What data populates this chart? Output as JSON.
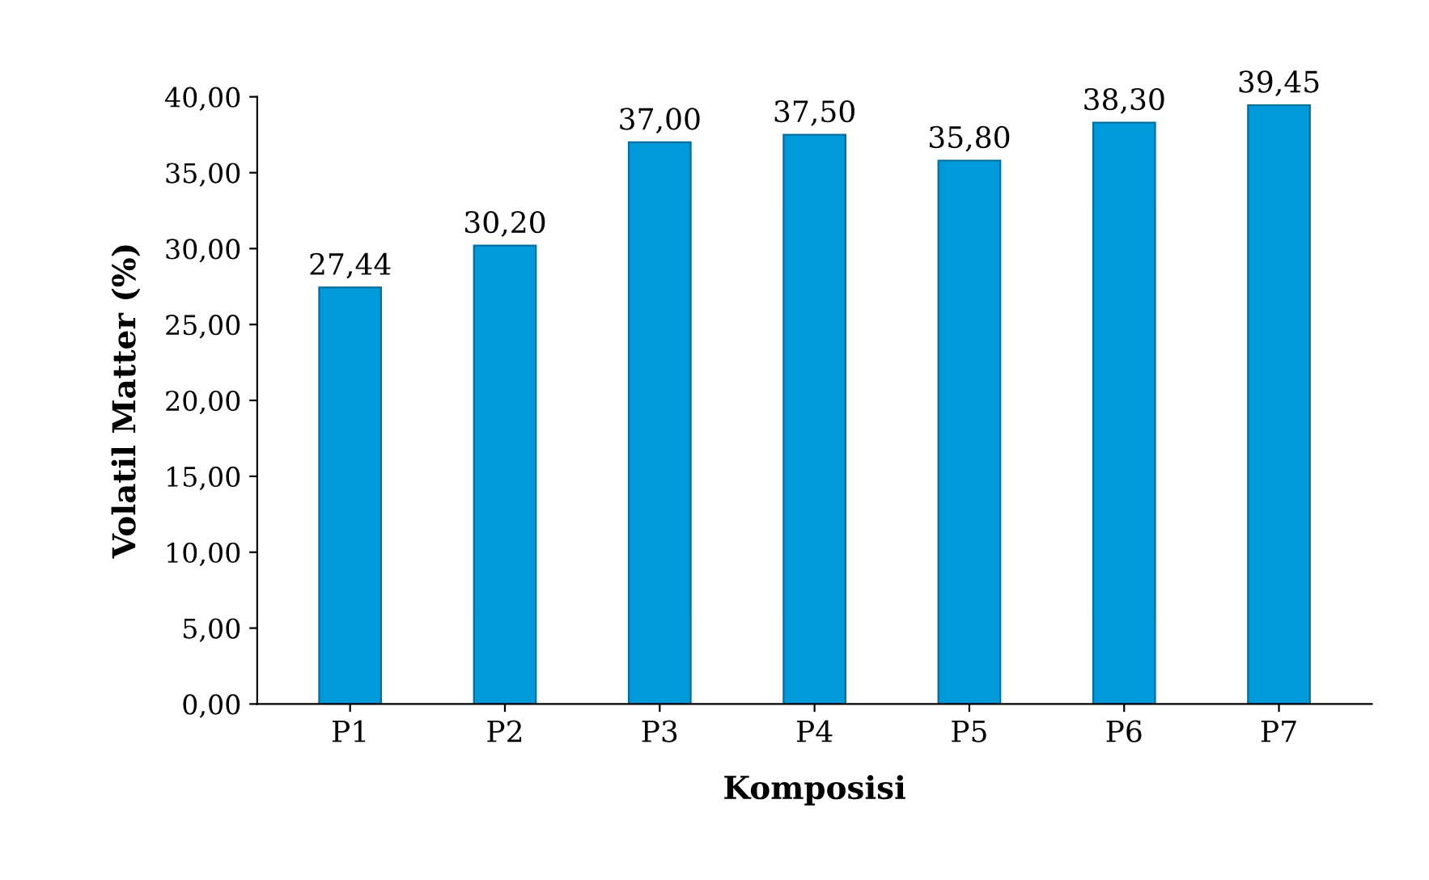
{
  "chart_data": {
    "type": "bar",
    "xlabel": "Komposisi",
    "ylabel": "Volatil Matter (%)",
    "categories": [
      "P1",
      "P2",
      "P3",
      "P4",
      "P5",
      "P6",
      "P7"
    ],
    "values": [
      27.44,
      30.2,
      37.0,
      37.5,
      35.8,
      38.3,
      39.45
    ],
    "value_labels": [
      "27,44",
      "30,20",
      "37,00",
      "37,50",
      "35,80",
      "38,30",
      "39,45"
    ],
    "color": "#0099d9",
    "ylim": [
      0,
      40
    ],
    "yticks": [
      {
        "value": 0,
        "label": "0,00"
      },
      {
        "value": 5,
        "label": "5,00"
      },
      {
        "value": 10,
        "label": "10,00"
      },
      {
        "value": 15,
        "label": "15,00"
      },
      {
        "value": 20,
        "label": "20,00"
      },
      {
        "value": 25,
        "label": "25,00"
      },
      {
        "value": 30,
        "label": "30,00"
      },
      {
        "value": 35,
        "label": "35,00"
      },
      {
        "value": 40,
        "label": "40,00"
      }
    ],
    "grid": false,
    "legend": false
  }
}
